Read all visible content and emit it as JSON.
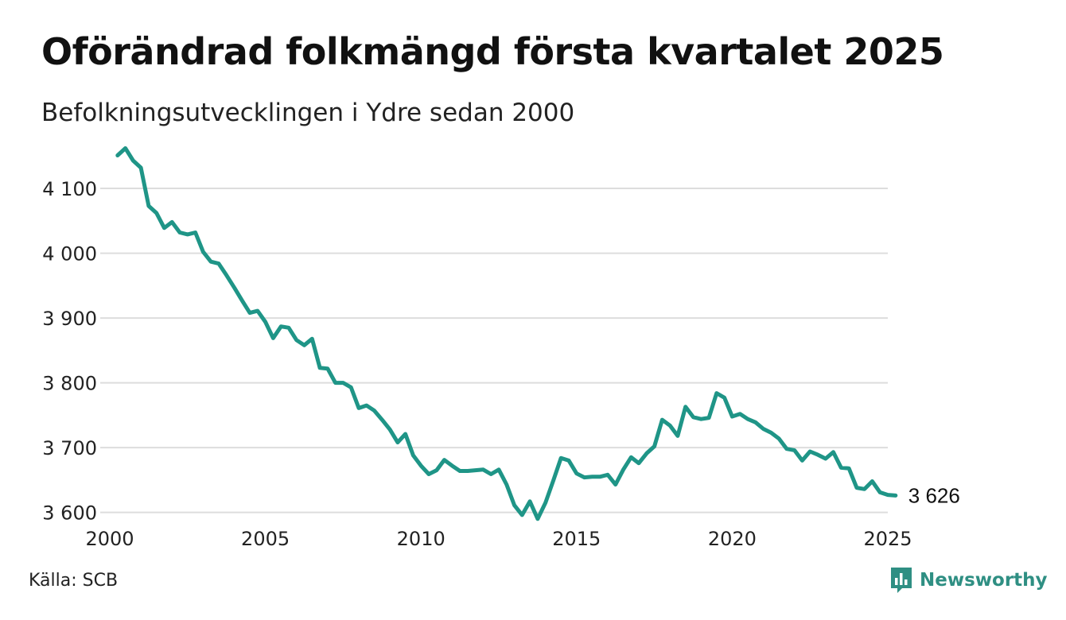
{
  "header": {
    "title": "Oförändrad folkmängd första kvartalet 2025",
    "subtitle": "Befolkningsutvecklingen i Ydre sedan 2000"
  },
  "footer": {
    "source": "Källa: SCB",
    "brand": "Newsworthy",
    "brand_icon": "bar-chart-speech-bubble-icon"
  },
  "colors": {
    "line": "#1f9587",
    "grid": "#dddddd",
    "brand": "#2f8f83"
  },
  "chart_data": {
    "type": "line",
    "x_ticks": [
      2000,
      2005,
      2010,
      2015,
      2020,
      2025
    ],
    "y_ticks": [
      3600,
      3700,
      3800,
      3900,
      4000,
      4100
    ],
    "y_tick_labels": [
      "3 600",
      "3 700",
      "3 800",
      "3 900",
      "4 000",
      "4 100"
    ],
    "xlim": [
      2000,
      2025
    ],
    "ylim": [
      3575,
      4170
    ],
    "grid": "horizontal",
    "end_label": "3 626",
    "series": [
      {
        "values": [
          [
            2000.25,
            4151
          ],
          [
            2000.5,
            4162
          ],
          [
            2000.75,
            4143
          ],
          [
            2001.0,
            4132
          ],
          [
            2001.25,
            4073
          ],
          [
            2001.5,
            4062
          ],
          [
            2001.75,
            4039
          ],
          [
            2002.0,
            4048
          ],
          [
            2002.25,
            4032
          ],
          [
            2002.5,
            4029
          ],
          [
            2002.75,
            4032
          ],
          [
            2003.0,
            4002
          ],
          [
            2003.25,
            3987
          ],
          [
            2003.5,
            3984
          ],
          [
            2003.75,
            3966
          ],
          [
            2004.0,
            3947
          ],
          [
            2004.25,
            3927
          ],
          [
            2004.5,
            3908
          ],
          [
            2004.75,
            3911
          ],
          [
            2005.0,
            3894
          ],
          [
            2005.25,
            3869
          ],
          [
            2005.5,
            3887
          ],
          [
            2005.75,
            3885
          ],
          [
            2006.0,
            3866
          ],
          [
            2006.25,
            3858
          ],
          [
            2006.5,
            3868
          ],
          [
            2006.75,
            3823
          ],
          [
            2007.0,
            3822
          ],
          [
            2007.25,
            3800
          ],
          [
            2007.5,
            3800
          ],
          [
            2007.75,
            3793
          ],
          [
            2008.0,
            3761
          ],
          [
            2008.25,
            3765
          ],
          [
            2008.5,
            3757
          ],
          [
            2008.75,
            3743
          ],
          [
            2009.0,
            3728
          ],
          [
            2009.25,
            3708
          ],
          [
            2009.5,
            3721
          ],
          [
            2009.75,
            3688
          ],
          [
            2010.0,
            3672
          ],
          [
            2010.25,
            3659
          ],
          [
            2010.5,
            3665
          ],
          [
            2010.75,
            3681
          ],
          [
            2011.0,
            3672
          ],
          [
            2011.25,
            3664
          ],
          [
            2011.5,
            3664
          ],
          [
            2011.75,
            3665
          ],
          [
            2012.0,
            3666
          ],
          [
            2012.25,
            3659
          ],
          [
            2012.5,
            3666
          ],
          [
            2012.75,
            3643
          ],
          [
            2013.0,
            3611
          ],
          [
            2013.25,
            3596
          ],
          [
            2013.5,
            3617
          ],
          [
            2013.75,
            3590
          ],
          [
            2014.0,
            3615
          ],
          [
            2014.25,
            3649
          ],
          [
            2014.5,
            3684
          ],
          [
            2014.75,
            3680
          ],
          [
            2015.0,
            3660
          ],
          [
            2015.25,
            3654
          ],
          [
            2015.5,
            3655
          ],
          [
            2015.75,
            3655
          ],
          [
            2016.0,
            3658
          ],
          [
            2016.25,
            3643
          ],
          [
            2016.5,
            3666
          ],
          [
            2016.75,
            3685
          ],
          [
            2017.0,
            3676
          ],
          [
            2017.25,
            3691
          ],
          [
            2017.5,
            3702
          ],
          [
            2017.75,
            3743
          ],
          [
            2018.0,
            3734
          ],
          [
            2018.25,
            3718
          ],
          [
            2018.5,
            3763
          ],
          [
            2018.75,
            3747
          ],
          [
            2019.0,
            3744
          ],
          [
            2019.25,
            3746
          ],
          [
            2019.5,
            3784
          ],
          [
            2019.75,
            3777
          ],
          [
            2020.0,
            3748
          ],
          [
            2020.25,
            3752
          ],
          [
            2020.5,
            3744
          ],
          [
            2020.75,
            3739
          ],
          [
            2021.0,
            3729
          ],
          [
            2021.25,
            3723
          ],
          [
            2021.5,
            3714
          ],
          [
            2021.75,
            3698
          ],
          [
            2022.0,
            3696
          ],
          [
            2022.25,
            3680
          ],
          [
            2022.5,
            3694
          ],
          [
            2022.75,
            3689
          ],
          [
            2023.0,
            3683
          ],
          [
            2023.25,
            3693
          ],
          [
            2023.5,
            3669
          ],
          [
            2023.75,
            3668
          ],
          [
            2024.0,
            3638
          ],
          [
            2024.25,
            3636
          ],
          [
            2024.5,
            3648
          ],
          [
            2024.75,
            3631
          ],
          [
            2025.0,
            3627
          ],
          [
            2025.25,
            3626
          ]
        ]
      }
    ]
  }
}
